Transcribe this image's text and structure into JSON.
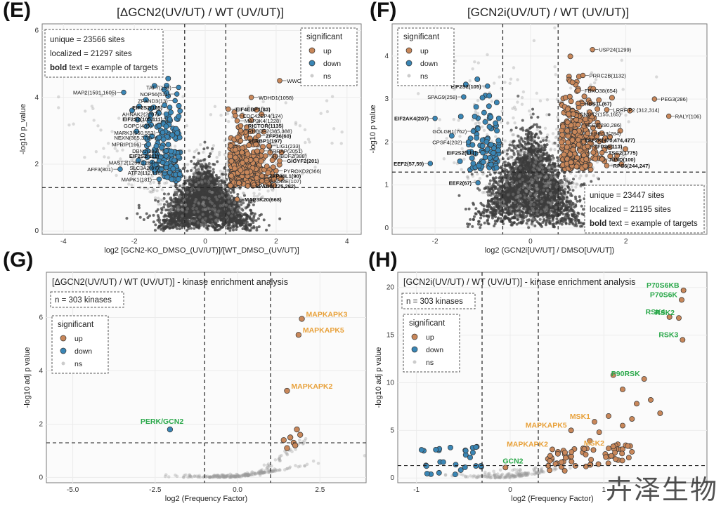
{
  "panels": {
    "E": {
      "letter": "(E)",
      "title": "[ΔGCN2(UV/UT) / WT (UV/UT)]"
    },
    "F": {
      "letter": "(F)",
      "title": "[GCN2i(UV/UT) / WT (UV/UT)]"
    },
    "G": {
      "letter": "(G)"
    },
    "H": {
      "letter": "(H)"
    }
  },
  "watermark": "卉泽生物",
  "colors": {
    "up": "#c8875a",
    "down": "#3a86b5",
    "ns": "#9a9a9a",
    "dense": "#3c3c3c",
    "green": "#2aa84a",
    "orange": "#e8a13a",
    "grid": "#ececec",
    "panel_bg": "#f4f4f4"
  },
  "chart_data": [
    {
      "id": "E",
      "type": "scatter",
      "subtype": "volcano",
      "xlabel": "log2 [GCN2-KO_DMSO_(UV/UT)]/[WT_DMSO_(UV/UT)]",
      "ylabel": "-log10 p_value",
      "xlim": [
        -4.6,
        4.4
      ],
      "ylim": [
        -0.1,
        6.2
      ],
      "xticks": [
        -4,
        -2,
        0,
        2,
        4
      ],
      "yticks": [
        0,
        2,
        4,
        6
      ],
      "vlines": [
        -0.58,
        0.58
      ],
      "hline": 1.3,
      "legend": {
        "title": "significant",
        "items": [
          "up",
          "down",
          "ns"
        ],
        "position": "top-right"
      },
      "info": [
        "unique = 23566 sites",
        "localized = 21297 sites"
      ],
      "info_bold": "bold",
      "info_suffix": " text = example of targets",
      "labels": [
        {
          "text": "MAP2(1591,1605)",
          "x": -2.3,
          "y": 4.15,
          "side": "left",
          "bold": false
        },
        {
          "text": "TAF7(159)",
          "x": -0.75,
          "y": 4.3,
          "side": "left",
          "bold": false
        },
        {
          "text": "NOP56(511)",
          "x": -0.8,
          "y": 4.1,
          "side": "left",
          "bold": false
        },
        {
          "text": "ZFAND3(13)",
          "x": -0.85,
          "y": 3.9,
          "side": "left",
          "bold": false
        },
        {
          "text": "EIF2S2(105)",
          "x": -1.0,
          "y": 3.7,
          "side": "left",
          "bold": true
        },
        {
          "text": "AHNAK2(2207)",
          "x": -1.1,
          "y": 3.5,
          "side": "left",
          "bold": false
        },
        {
          "text": "EIF2S2(105,111)",
          "x": -1.0,
          "y": 3.35,
          "side": "left",
          "bold": true
        },
        {
          "text": "GOPC(439)",
          "x": -1.3,
          "y": 3.15,
          "side": "left",
          "bold": false
        },
        {
          "text": "MARK3(550,553)",
          "x": -1.2,
          "y": 2.95,
          "side": "left",
          "bold": false
        },
        {
          "text": "NEXN(365,370)",
          "x": -1.3,
          "y": 2.8,
          "side": "left",
          "bold": false
        },
        {
          "text": "MPRIP(166)",
          "x": -1.6,
          "y": 2.6,
          "side": "left",
          "bold": false
        },
        {
          "text": "DBN1(388)",
          "x": -1.1,
          "y": 2.4,
          "side": "left",
          "bold": false
        },
        {
          "text": "EIF2S2(111)",
          "x": -1.1,
          "y": 2.25,
          "side": "left",
          "bold": true
        },
        {
          "text": "MAST2(1256,1264)",
          "x": -1.2,
          "y": 2.05,
          "side": "left",
          "bold": false
        },
        {
          "text": "SLC3A2(67)",
          "x": -1.1,
          "y": 1.9,
          "side": "left",
          "bold": false
        },
        {
          "text": "AFF3(801)",
          "x": -2.4,
          "y": 1.85,
          "side": "left",
          "bold": false
        },
        {
          "text": "ATF2(112,116)",
          "x": -1.0,
          "y": 1.75,
          "side": "left",
          "bold": false
        },
        {
          "text": "MAPK1(181)",
          "x": -1.3,
          "y": 1.55,
          "side": "left",
          "bold": false
        },
        {
          "text": "WWC1(525)",
          "x": 2.1,
          "y": 4.5,
          "side": "right",
          "bold": false
        },
        {
          "text": "WDHD1(1058)",
          "x": 1.3,
          "y": 4.0,
          "side": "right",
          "bold": false
        },
        {
          "text": "EIF4EBP1(83)",
          "x": 0.65,
          "y": 3.65,
          "side": "right",
          "bold": true
        },
        {
          "text": "CDC42EP4(174)",
          "x": 0.85,
          "y": 3.45,
          "side": "right",
          "bold": false
        },
        {
          "text": "MAP3K4(1228)",
          "x": 0.9,
          "y": 3.3,
          "side": "right",
          "bold": false
        },
        {
          "text": "RICTOR(1135)",
          "x": 1.0,
          "y": 3.15,
          "side": "right",
          "bold": true
        },
        {
          "text": "RHBDF2(385,388)",
          "x": 1.0,
          "y": 3.0,
          "side": "right",
          "bold": false
        },
        {
          "text": "ZFP36(60)",
          "x": 1.5,
          "y": 2.85,
          "side": "right",
          "bold": true
        },
        {
          "text": "SERBP1(197)",
          "x": 1.0,
          "y": 2.7,
          "side": "right",
          "bold": true
        },
        {
          "text": "LIG1(233)",
          "x": 1.8,
          "y": 2.55,
          "side": "right",
          "bold": false
        },
        {
          "text": "TRRAP(2051)",
          "x": 1.6,
          "y": 2.4,
          "side": "right",
          "bold": false
        },
        {
          "text": "RHBDF2(388)",
          "x": 1.7,
          "y": 2.25,
          "side": "right",
          "bold": false
        },
        {
          "text": "GIGYF2(201)",
          "x": 2.1,
          "y": 2.1,
          "side": "right",
          "bold": true
        },
        {
          "text": "PYROXD2(366)",
          "x": 2.0,
          "y": 1.8,
          "side": "right",
          "bold": false
        },
        {
          "text": "ZFP36L1(90)",
          "x": 1.6,
          "y": 1.65,
          "side": "right",
          "bold": true
        },
        {
          "text": "GSDME(107)",
          "x": 1.6,
          "y": 1.5,
          "side": "right",
          "bold": false
        },
        {
          "text": "SPAG9(275,282)",
          "x": 1.2,
          "y": 1.35,
          "side": "right",
          "bold": true
        },
        {
          "text": "MAP3K20(668)",
          "x": 0.9,
          "y": 0.95,
          "side": "right",
          "bold": true
        }
      ]
    },
    {
      "id": "F",
      "type": "scatter",
      "subtype": "volcano",
      "xlabel": "log2 (GCN2i[UV/UT] / DMSO[UV/UT])",
      "ylabel": "-log10 p value",
      "xlim": [
        -2.9,
        3.7
      ],
      "ylim": [
        -0.15,
        4.75
      ],
      "xticks": [
        -2,
        0,
        2
      ],
      "yticks": [
        0,
        1,
        2,
        3,
        4
      ],
      "vlines": [
        -0.58,
        0.58
      ],
      "hline": 1.3,
      "legend": {
        "title": "significant",
        "items": [
          "up",
          "down",
          "ns"
        ],
        "position": "top-left"
      },
      "info": [
        "unique = 23447 sites",
        "localized = 21195 sites"
      ],
      "info_bold": "bold",
      "info_suffix": " text = example of targets",
      "labels": [
        {
          "text": "USP24(1299)",
          "x": 1.3,
          "y": 4.15,
          "side": "right",
          "bold": false
        },
        {
          "text": "PRRC2B(1132)",
          "x": 1.1,
          "y": 3.55,
          "side": "right",
          "bold": false
        },
        {
          "text": "PEG3(286)",
          "x": 2.6,
          "y": 3.0,
          "side": "right",
          "bold": false
        },
        {
          "text": "RALY(106)",
          "x": 2.9,
          "y": 2.6,
          "side": "right",
          "bold": false
        },
        {
          "text": "FBXO38(654)",
          "x": 1.0,
          "y": 3.2,
          "side": "right",
          "bold": false
        },
        {
          "text": "LRRFIP2 (312,314)",
          "x": 1.6,
          "y": 2.75,
          "side": "right",
          "bold": false
        },
        {
          "text": "HBS1L(67)",
          "x": 1.0,
          "y": 2.9,
          "side": "right",
          "bold": true
        },
        {
          "text": "CNOT2(155,165)",
          "x": 0.9,
          "y": 2.65,
          "side": "right",
          "bold": false
        },
        {
          "text": "PEG3(280,286)",
          "x": 1.0,
          "y": 2.4,
          "side": "right",
          "bold": false
        },
        {
          "text": "PEG3(284)",
          "x": 1.2,
          "y": 2.2,
          "side": "right",
          "bold": false
        },
        {
          "text": "EEF2K(470,474,477)",
          "x": 1.0,
          "y": 2.05,
          "side": "right",
          "bold": true
        },
        {
          "text": "ZFP36(113)",
          "x": 1.2,
          "y": 1.9,
          "side": "right",
          "bold": true
        },
        {
          "text": "TSC2(1775)",
          "x": 1.5,
          "y": 1.75,
          "side": "right",
          "bold": true
        },
        {
          "text": "JUND(100)",
          "x": 1.5,
          "y": 1.6,
          "side": "right",
          "bold": true
        },
        {
          "text": "RPS6(244,247)",
          "x": 1.6,
          "y": 1.45,
          "side": "right",
          "bold": true
        },
        {
          "text": "EIF2S2(105)",
          "x": -0.9,
          "y": 3.3,
          "side": "left",
          "bold": true
        },
        {
          "text": "SPAG9(258)",
          "x": -1.4,
          "y": 3.05,
          "side": "left",
          "bold": false
        },
        {
          "text": "EIF2AK4(207)",
          "x": -2.0,
          "y": 2.55,
          "side": "left",
          "bold": true
        },
        {
          "text": "GOLGB1(762)",
          "x": -1.2,
          "y": 2.25,
          "side": "left",
          "bold": false
        },
        {
          "text": "CPSF4(202)",
          "x": -1.3,
          "y": 2.0,
          "side": "left",
          "bold": false
        },
        {
          "text": "EIF2S2(111)",
          "x": -1.0,
          "y": 1.75,
          "side": "left",
          "bold": true
        },
        {
          "text": "EEF2(57,59)",
          "x": -2.1,
          "y": 1.5,
          "side": "left",
          "bold": true
        },
        {
          "text": "EEF2(67)",
          "x": -1.1,
          "y": 1.05,
          "side": "left",
          "bold": true
        }
      ]
    },
    {
      "id": "G",
      "type": "scatter",
      "title": "[ΔGCN2(UV/UT) / WT (UV/UT)] - kinase enrichment analysis",
      "xlabel": "log2 (Frequency Factor)",
      "ylabel": "-log10 adj p value",
      "xlim": [
        -5.8,
        3.9
      ],
      "ylim": [
        -0.2,
        7.7
      ],
      "xticks": [
        -5.0,
        -2.5,
        0.0,
        2.5
      ],
      "xtick_labels": [
        "-5.0",
        "-2.5",
        "0.0",
        "2.5"
      ],
      "yticks": [
        0,
        2,
        4,
        6
      ],
      "vlines": [
        -1,
        1
      ],
      "hline": 1.3,
      "legend": {
        "title": "significant",
        "items": [
          "up",
          "down",
          "ns"
        ],
        "position": "top-left"
      },
      "info": [
        "n = 303 kinases"
      ],
      "labels": [
        {
          "text": "MAPKAPK3",
          "x": 1.95,
          "y": 5.95,
          "color": "orange"
        },
        {
          "text": "MAPKAPK5",
          "x": 1.85,
          "y": 5.35,
          "color": "orange"
        },
        {
          "text": "MAPKAPK2",
          "x": 1.5,
          "y": 3.25,
          "color": "orange"
        },
        {
          "text": "PERK/GCN2",
          "x": -2.05,
          "y": 1.8,
          "color": "green"
        }
      ]
    },
    {
      "id": "H",
      "type": "scatter",
      "title": "[GCN2i(UV/UT) / WT (UV/UT)] - kinase enrichment analysis",
      "xlabel": "log2 (Frequency Factor)",
      "ylabel": "-log10 adj p value",
      "xlim": [
        -1.2,
        2.1
      ],
      "ylim": [
        -0.5,
        21.6
      ],
      "xticks": [
        -1,
        0,
        1
      ],
      "yticks": [
        0,
        5,
        10,
        15,
        20
      ],
      "vlines": [
        -0.3,
        0.3
      ],
      "hline": 1.3,
      "legend": {
        "title": "significant",
        "items": [
          "up",
          "down",
          "ns"
        ],
        "position": "top-left"
      },
      "info": [
        "n = 303 kinases"
      ],
      "labels": [
        {
          "text": "P70S6KB",
          "x": 1.85,
          "y": 19.7,
          "color": "green"
        },
        {
          "text": "P70S6K",
          "x": 1.83,
          "y": 18.7,
          "color": "green"
        },
        {
          "text": "RSK4",
          "x": 1.7,
          "y": 16.9,
          "color": "green"
        },
        {
          "text": "RSK2",
          "x": 1.8,
          "y": 16.8,
          "color": "green"
        },
        {
          "text": "RSK3",
          "x": 1.84,
          "y": 14.5,
          "color": "green"
        },
        {
          "text": "P90RSK",
          "x": 1.43,
          "y": 10.4,
          "color": "green"
        },
        {
          "text": "MSK1",
          "x": 0.9,
          "y": 5.9,
          "color": "orange"
        },
        {
          "text": "MAPKAPK5",
          "x": 0.65,
          "y": 5.0,
          "color": "orange"
        },
        {
          "text": "MAPKAPK2",
          "x": 0.45,
          "y": 3.0,
          "color": "orange"
        },
        {
          "text": "MSK2",
          "x": 1.05,
          "y": 3.1,
          "color": "orange"
        },
        {
          "text": "GCN2",
          "x": -0.05,
          "y": 1.1,
          "color": "green"
        }
      ]
    }
  ]
}
